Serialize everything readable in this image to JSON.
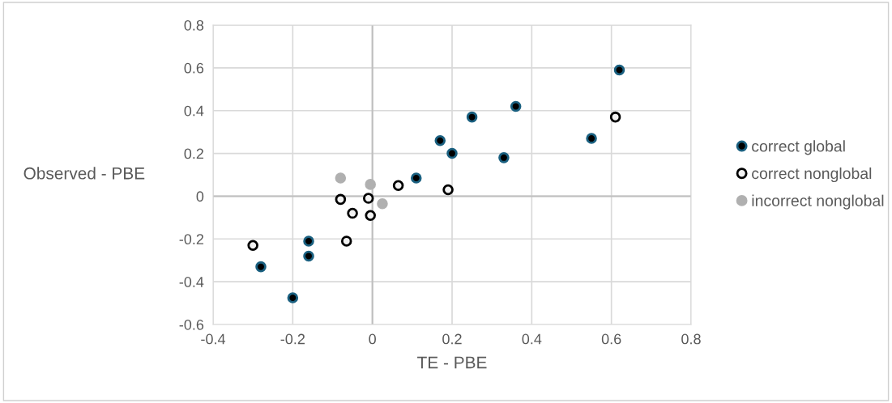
{
  "chart_data": {
    "type": "scatter",
    "xlabel": "TE - PBE",
    "ylabel": "Observed - PBE",
    "xlim": [
      -0.4,
      0.8
    ],
    "xticks": [
      -0.4,
      -0.2,
      0,
      0.2,
      0.4,
      0.6,
      0.8
    ],
    "ylim": [
      -0.6,
      0.8
    ],
    "yticks": [
      -0.6,
      -0.4,
      -0.2,
      0,
      0.2,
      0.4,
      0.6,
      0.8
    ],
    "grid": true,
    "legend": "right",
    "marker": "circle",
    "series": [
      {
        "name": "correct global",
        "color": "#000000",
        "x": [
          0.62,
          0.36,
          0.25,
          0.17,
          0.2,
          0.11,
          0.33,
          0.55,
          -0.16,
          -0.16,
          -0.28,
          -0.2
        ],
        "values": [
          0.59,
          0.42,
          0.37,
          0.26,
          0.2,
          0.085,
          0.18,
          0.27,
          -0.21,
          -0.28,
          -0.33,
          -0.475
        ]
      },
      {
        "name": "correct nonglobal",
        "color": "#f2f2f2",
        "x": [
          0.61,
          0.19,
          0.065,
          -0.08,
          -0.01,
          -0.05,
          -0.005,
          -0.065,
          -0.3
        ],
        "values": [
          0.37,
          0.03,
          0.05,
          -0.015,
          -0.01,
          -0.08,
          -0.09,
          -0.21,
          -0.23
        ]
      },
      {
        "name": "incorrect nonglobal",
        "color": "#b0b0b0",
        "x": [
          -0.08,
          -0.005,
          0.025
        ],
        "values": [
          0.085,
          0.055,
          -0.035
        ]
      }
    ]
  }
}
